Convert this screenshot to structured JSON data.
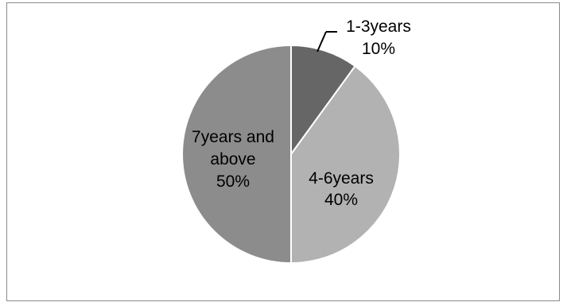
{
  "chart_data": {
    "type": "pie",
    "title": "",
    "slices": [
      {
        "name": "1-3years",
        "value": 10,
        "label": "10%",
        "color": "#666666"
      },
      {
        "name": "4-6years",
        "value": 40,
        "label": "40%",
        "color": "#b2b2b2"
      },
      {
        "name": "7years and above",
        "value": 50,
        "label": "50%",
        "color": "#8c8c8c"
      }
    ],
    "legend": "none",
    "label_text": {
      "s0_line1": "1-3years",
      "s0_line2": "10%",
      "s1_line1": "4-6years",
      "s1_line2": "40%",
      "s2_line1": "7years and",
      "s2_line2": "above",
      "s2_line3": "50%"
    }
  }
}
